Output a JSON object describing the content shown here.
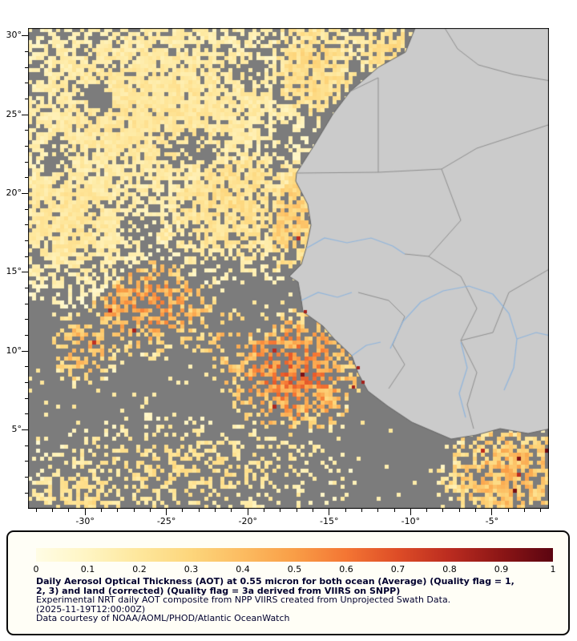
{
  "map": {
    "ocean_nodata_color": "#7c7c7c",
    "land_color": "#cbcbcb",
    "coast_color": "#636363",
    "border_color": "#8f8f8f",
    "river_color": "#8fb5dd",
    "frame_color": "#000000",
    "palette": [
      {
        "t": 0.0,
        "color": "#FFFDE5"
      },
      {
        "t": 0.1,
        "color": "#FFF5C3"
      },
      {
        "t": 0.2,
        "color": "#FEE79C"
      },
      {
        "t": 0.3,
        "color": "#FDD67C"
      },
      {
        "t": 0.4,
        "color": "#FCBC61"
      },
      {
        "t": 0.5,
        "color": "#F99E47"
      },
      {
        "t": 0.6,
        "color": "#F47634"
      },
      {
        "t": 0.7,
        "color": "#DE4D27"
      },
      {
        "t": 0.8,
        "color": "#BB2C20"
      },
      {
        "t": 0.9,
        "color": "#8C1616"
      },
      {
        "t": 1.0,
        "color": "#5C0511"
      }
    ]
  },
  "axes": {
    "lat_labels": [
      {
        "label": "30°",
        "value": 30
      },
      {
        "label": "25°",
        "value": 25
      },
      {
        "label": "20°",
        "value": 20
      },
      {
        "label": "15°",
        "value": 15
      },
      {
        "label": "10°",
        "value": 10
      },
      {
        "label": "5°",
        "value": 5
      }
    ],
    "lon_labels": [
      {
        "label": "-30°",
        "value": -30
      },
      {
        "label": "-25°",
        "value": -25
      },
      {
        "label": "-20°",
        "value": -20
      },
      {
        "label": "-15°",
        "value": -15
      },
      {
        "label": "-10°",
        "value": -10
      },
      {
        "label": "-5°",
        "value": -5
      }
    ]
  },
  "legend": {
    "tick_labels": [
      "0",
      "0.1",
      "0.2",
      "0.3",
      "0.4",
      "0.5",
      "0.6",
      "0.7",
      "0.8",
      "0.9",
      "1"
    ],
    "scale_min": 0,
    "scale_max": 1,
    "title_line1": "Daily Aerosol Optical Thickness (AOT) at 0.55 micron for both ocean (Average) (Quality flag = 1,",
    "title_line2": "2, 3) and land (corrected) (Quality flag = 3a derived from VIIRS on SNPP)",
    "description": "Experimental NRT daily AOT composite from NPP VIIRS created from Unprojected Swath Data.",
    "timestamp": "(2025-11-19T12:00:00Z)",
    "credit": "Data courtesy of NOAA/AOML/PHOD/Atlantic OceanWatch",
    "text_color": "#00002e"
  }
}
